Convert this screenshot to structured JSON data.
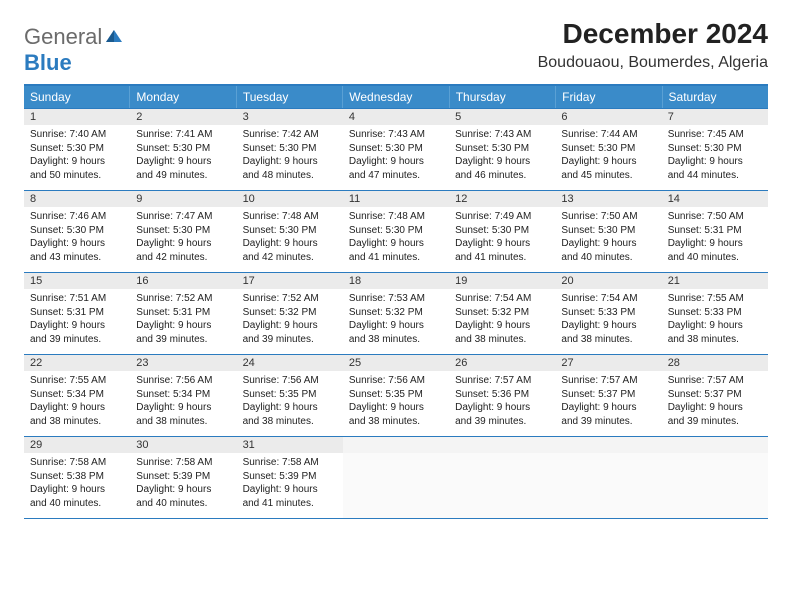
{
  "brand": {
    "general": "General",
    "blue": "Blue"
  },
  "title": "December 2024",
  "location": "Boudouaou, Boumerdes, Algeria",
  "colors": {
    "header_bg": "#3a8bc9",
    "rule": "#2b7bbf",
    "daynum_bg": "#ebebeb",
    "text": "#222222"
  },
  "day_headers": [
    "Sunday",
    "Monday",
    "Tuesday",
    "Wednesday",
    "Thursday",
    "Friday",
    "Saturday"
  ],
  "weeks": [
    [
      {
        "n": "1",
        "sr": "Sunrise: 7:40 AM",
        "ss": "Sunset: 5:30 PM",
        "d1": "Daylight: 9 hours",
        "d2": "and 50 minutes."
      },
      {
        "n": "2",
        "sr": "Sunrise: 7:41 AM",
        "ss": "Sunset: 5:30 PM",
        "d1": "Daylight: 9 hours",
        "d2": "and 49 minutes."
      },
      {
        "n": "3",
        "sr": "Sunrise: 7:42 AM",
        "ss": "Sunset: 5:30 PM",
        "d1": "Daylight: 9 hours",
        "d2": "and 48 minutes."
      },
      {
        "n": "4",
        "sr": "Sunrise: 7:43 AM",
        "ss": "Sunset: 5:30 PM",
        "d1": "Daylight: 9 hours",
        "d2": "and 47 minutes."
      },
      {
        "n": "5",
        "sr": "Sunrise: 7:43 AM",
        "ss": "Sunset: 5:30 PM",
        "d1": "Daylight: 9 hours",
        "d2": "and 46 minutes."
      },
      {
        "n": "6",
        "sr": "Sunrise: 7:44 AM",
        "ss": "Sunset: 5:30 PM",
        "d1": "Daylight: 9 hours",
        "d2": "and 45 minutes."
      },
      {
        "n": "7",
        "sr": "Sunrise: 7:45 AM",
        "ss": "Sunset: 5:30 PM",
        "d1": "Daylight: 9 hours",
        "d2": "and 44 minutes."
      }
    ],
    [
      {
        "n": "8",
        "sr": "Sunrise: 7:46 AM",
        "ss": "Sunset: 5:30 PM",
        "d1": "Daylight: 9 hours",
        "d2": "and 43 minutes."
      },
      {
        "n": "9",
        "sr": "Sunrise: 7:47 AM",
        "ss": "Sunset: 5:30 PM",
        "d1": "Daylight: 9 hours",
        "d2": "and 42 minutes."
      },
      {
        "n": "10",
        "sr": "Sunrise: 7:48 AM",
        "ss": "Sunset: 5:30 PM",
        "d1": "Daylight: 9 hours",
        "d2": "and 42 minutes."
      },
      {
        "n": "11",
        "sr": "Sunrise: 7:48 AM",
        "ss": "Sunset: 5:30 PM",
        "d1": "Daylight: 9 hours",
        "d2": "and 41 minutes."
      },
      {
        "n": "12",
        "sr": "Sunrise: 7:49 AM",
        "ss": "Sunset: 5:30 PM",
        "d1": "Daylight: 9 hours",
        "d2": "and 41 minutes."
      },
      {
        "n": "13",
        "sr": "Sunrise: 7:50 AM",
        "ss": "Sunset: 5:30 PM",
        "d1": "Daylight: 9 hours",
        "d2": "and 40 minutes."
      },
      {
        "n": "14",
        "sr": "Sunrise: 7:50 AM",
        "ss": "Sunset: 5:31 PM",
        "d1": "Daylight: 9 hours",
        "d2": "and 40 minutes."
      }
    ],
    [
      {
        "n": "15",
        "sr": "Sunrise: 7:51 AM",
        "ss": "Sunset: 5:31 PM",
        "d1": "Daylight: 9 hours",
        "d2": "and 39 minutes."
      },
      {
        "n": "16",
        "sr": "Sunrise: 7:52 AM",
        "ss": "Sunset: 5:31 PM",
        "d1": "Daylight: 9 hours",
        "d2": "and 39 minutes."
      },
      {
        "n": "17",
        "sr": "Sunrise: 7:52 AM",
        "ss": "Sunset: 5:32 PM",
        "d1": "Daylight: 9 hours",
        "d2": "and 39 minutes."
      },
      {
        "n": "18",
        "sr": "Sunrise: 7:53 AM",
        "ss": "Sunset: 5:32 PM",
        "d1": "Daylight: 9 hours",
        "d2": "and 38 minutes."
      },
      {
        "n": "19",
        "sr": "Sunrise: 7:54 AM",
        "ss": "Sunset: 5:32 PM",
        "d1": "Daylight: 9 hours",
        "d2": "and 38 minutes."
      },
      {
        "n": "20",
        "sr": "Sunrise: 7:54 AM",
        "ss": "Sunset: 5:33 PM",
        "d1": "Daylight: 9 hours",
        "d2": "and 38 minutes."
      },
      {
        "n": "21",
        "sr": "Sunrise: 7:55 AM",
        "ss": "Sunset: 5:33 PM",
        "d1": "Daylight: 9 hours",
        "d2": "and 38 minutes."
      }
    ],
    [
      {
        "n": "22",
        "sr": "Sunrise: 7:55 AM",
        "ss": "Sunset: 5:34 PM",
        "d1": "Daylight: 9 hours",
        "d2": "and 38 minutes."
      },
      {
        "n": "23",
        "sr": "Sunrise: 7:56 AM",
        "ss": "Sunset: 5:34 PM",
        "d1": "Daylight: 9 hours",
        "d2": "and 38 minutes."
      },
      {
        "n": "24",
        "sr": "Sunrise: 7:56 AM",
        "ss": "Sunset: 5:35 PM",
        "d1": "Daylight: 9 hours",
        "d2": "and 38 minutes."
      },
      {
        "n": "25",
        "sr": "Sunrise: 7:56 AM",
        "ss": "Sunset: 5:35 PM",
        "d1": "Daylight: 9 hours",
        "d2": "and 38 minutes."
      },
      {
        "n": "26",
        "sr": "Sunrise: 7:57 AM",
        "ss": "Sunset: 5:36 PM",
        "d1": "Daylight: 9 hours",
        "d2": "and 39 minutes."
      },
      {
        "n": "27",
        "sr": "Sunrise: 7:57 AM",
        "ss": "Sunset: 5:37 PM",
        "d1": "Daylight: 9 hours",
        "d2": "and 39 minutes."
      },
      {
        "n": "28",
        "sr": "Sunrise: 7:57 AM",
        "ss": "Sunset: 5:37 PM",
        "d1": "Daylight: 9 hours",
        "d2": "and 39 minutes."
      }
    ],
    [
      {
        "n": "29",
        "sr": "Sunrise: 7:58 AM",
        "ss": "Sunset: 5:38 PM",
        "d1": "Daylight: 9 hours",
        "d2": "and 40 minutes."
      },
      {
        "n": "30",
        "sr": "Sunrise: 7:58 AM",
        "ss": "Sunset: 5:39 PM",
        "d1": "Daylight: 9 hours",
        "d2": "and 40 minutes."
      },
      {
        "n": "31",
        "sr": "Sunrise: 7:58 AM",
        "ss": "Sunset: 5:39 PM",
        "d1": "Daylight: 9 hours",
        "d2": "and 41 minutes."
      },
      null,
      null,
      null,
      null
    ]
  ]
}
